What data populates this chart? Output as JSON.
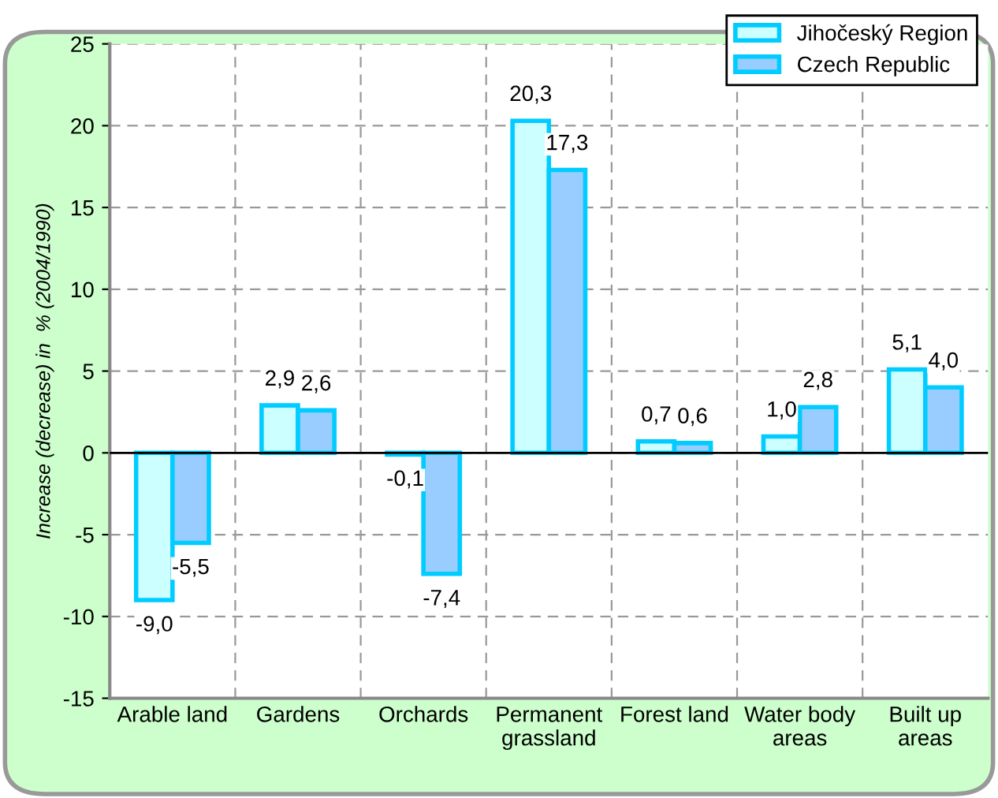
{
  "chart_data": {
    "type": "bar",
    "ylabel": "Increase (decrease) in  % (2004/1990)",
    "categories": [
      "Arable land",
      "Gardens",
      "Orchards",
      "Permanent\ngrassland",
      "Forest land",
      "Water body\nareas",
      "Built up\nareas"
    ],
    "series": [
      {
        "name": "Jihočeský Region",
        "color": "#ccffff",
        "values": [
          -9.0,
          2.9,
          -0.1,
          20.3,
          0.7,
          1.0,
          5.1
        ],
        "value_labels": [
          "-9,0",
          "2,9",
          "-0,1",
          "20,3",
          "0,7",
          "1,0",
          "5,1"
        ]
      },
      {
        "name": "Czech Republic",
        "color": "#99ccff",
        "values": [
          -5.5,
          2.6,
          -7.4,
          17.3,
          0.6,
          2.8,
          4.0
        ],
        "value_labels": [
          "-5,5",
          "2,6",
          "-7,4",
          "17,3",
          "0,6",
          "2,8",
          "4,0"
        ]
      }
    ],
    "ylim": [
      -15,
      25
    ],
    "yticks": [
      -15,
      -10,
      -5,
      0,
      5,
      10,
      15,
      20,
      25
    ],
    "grid": true,
    "legend": "top right"
  }
}
